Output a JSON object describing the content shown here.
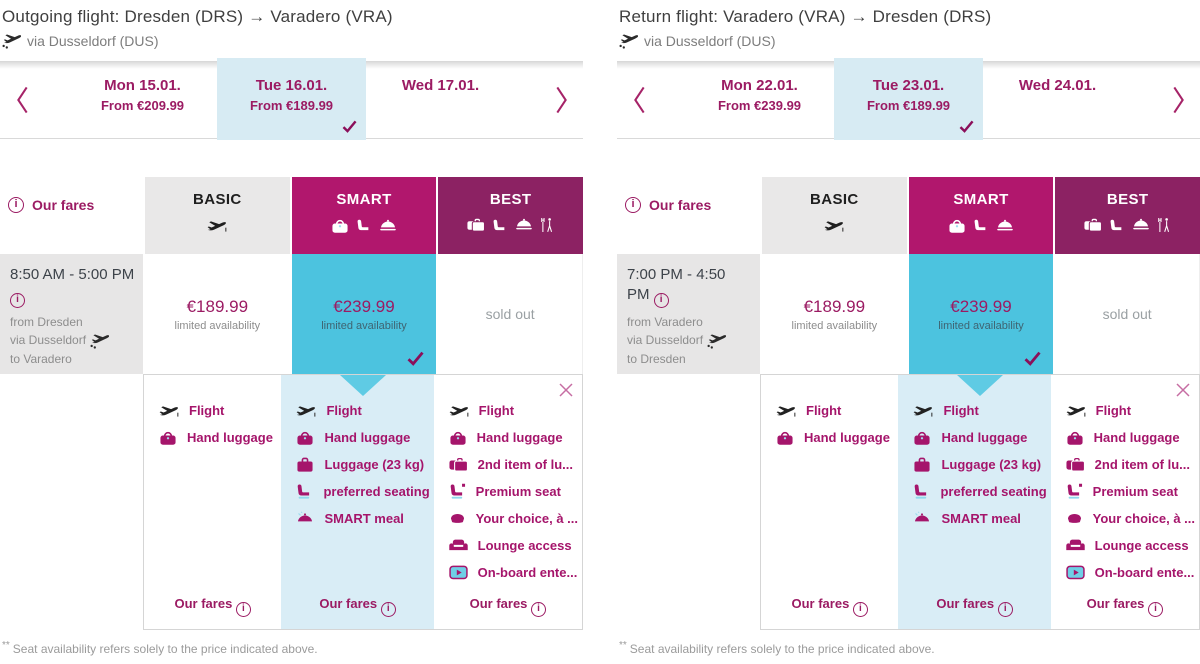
{
  "colors": {
    "brand_magenta": "#9b1b63",
    "smart_header": "#b1176d",
    "best_header": "#8c2263",
    "selected_cyan": "#4cc3df",
    "details_cyan": "#d9edf6",
    "date_selected_blue": "#d7ebf3",
    "basic_header_gray": "#e9e8e8",
    "check_mark": "#8b0f5a"
  },
  "shared": {
    "our_fares_header": "Our fares",
    "our_fares_footer": "Our fares",
    "footnote_marker": "**",
    "footnote_text": "Seat availability refers solely to the price indicated above."
  },
  "fare_columns": {
    "basic": {
      "name": "BASIC",
      "icons": [
        "flight-icon"
      ]
    },
    "smart": {
      "name": "SMART",
      "icons": [
        "hand-luggage-icon",
        "seat-icon",
        "meal-icon"
      ]
    },
    "best": {
      "name": "BEST",
      "icons": [
        "double-luggage-icon",
        "seat-icon",
        "meal-icon",
        "restaurant-icon"
      ]
    }
  },
  "features": {
    "basic": [
      {
        "icon": "flight-icon",
        "label": "Flight"
      },
      {
        "icon": "hand-luggage-icon",
        "label": "Hand luggage"
      }
    ],
    "smart": [
      {
        "icon": "flight-icon",
        "label": "Flight"
      },
      {
        "icon": "hand-luggage-icon",
        "label": "Hand luggage"
      },
      {
        "icon": "luggage-icon",
        "label": "Luggage (23 kg)"
      },
      {
        "icon": "preferred-seating-icon",
        "label": "preferred seating"
      },
      {
        "icon": "smart-meal-icon",
        "label": "SMART meal"
      }
    ],
    "best": [
      {
        "icon": "flight-icon",
        "label": "Flight"
      },
      {
        "icon": "hand-luggage-icon",
        "label": "Hand luggage"
      },
      {
        "icon": "second-luggage-icon",
        "label": "2nd item of lu..."
      },
      {
        "icon": "premium-seat-icon",
        "label": "Premium seat"
      },
      {
        "icon": "meal-choice-icon",
        "label": "Your choice, à ..."
      },
      {
        "icon": "lounge-icon",
        "label": "Lounge access"
      },
      {
        "icon": "entertainment-icon",
        "label": "On-board ente..."
      }
    ]
  },
  "panels": [
    {
      "title": "Outgoing flight: Dresden (DRS) → Varadero (VRA)",
      "via": "via Dusseldorf (DUS)",
      "dates": [
        {
          "day": "Mon 15.01.",
          "price": "From €209.99",
          "selected": false
        },
        {
          "day": "Tue 16.01.",
          "price": "From €189.99",
          "selected": true
        },
        {
          "day": "Wed 17.01.",
          "price": "",
          "selected": false
        }
      ],
      "flight": {
        "time": "8:50 AM - 5:00 PM",
        "from": "from Dresden",
        "via": "via Dusseldorf",
        "to": "to Varadero"
      },
      "fares": {
        "basic": {
          "price": "€189.99",
          "availability": "limited availability",
          "selected": false
        },
        "smart": {
          "price": "€239.99",
          "availability": "limited availability",
          "selected": true
        },
        "best": {
          "status": "sold out"
        }
      }
    },
    {
      "title": "Return flight: Varadero (VRA) → Dresden (DRS)",
      "via": "via Dusseldorf (DUS)",
      "dates": [
        {
          "day": "Mon 22.01.",
          "price": "From €239.99",
          "selected": false
        },
        {
          "day": "Tue 23.01.",
          "price": "From €189.99",
          "selected": true
        },
        {
          "day": "Wed 24.01.",
          "price": "",
          "selected": false
        }
      ],
      "flight": {
        "time": "7:00 PM - 4:50 PM",
        "from": "from Varadero",
        "via": "via Dusseldorf",
        "to": "to Dresden"
      },
      "fares": {
        "basic": {
          "price": "€189.99",
          "availability": "limited availability",
          "selected": false
        },
        "smart": {
          "price": "€239.99",
          "availability": "limited availability",
          "selected": true
        },
        "best": {
          "status": "sold out"
        }
      }
    }
  ]
}
